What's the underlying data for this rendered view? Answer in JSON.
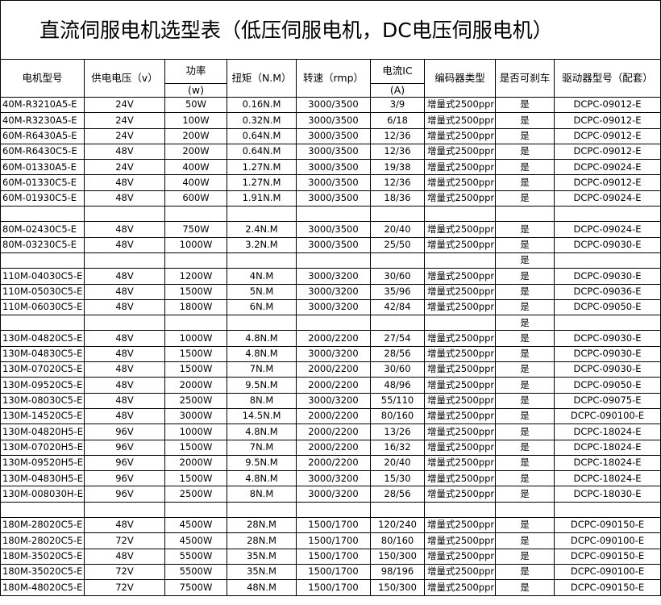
{
  "title": "直流伺服电机选型表（低压伺服电机，DC电压伺服电机）",
  "table": {
    "header": [
      "电机型号",
      "供电电压（v）",
      [
        "功率",
        "(w)"
      ],
      "扭矩（N.M）",
      "转速（rmp）",
      [
        "电流IC",
        "(A)"
      ],
      "编码器类型",
      "是否可刹车",
      "驱动器型号（配套）"
    ],
    "rows": [
      [
        "40M-R3210A5-E",
        "24V",
        "50W",
        "0.16N.M",
        "3000/3500",
        "3/9",
        "增量式2500ppr",
        "是",
        "DCPC-09012-E"
      ],
      [
        "40M-R3230A5-E",
        "24V",
        "100W",
        "0.32N.M",
        "3000/3500",
        "6/18",
        "增量式2500ppr",
        "是",
        "DCPC-09012-E"
      ],
      [
        "60M-R6430A5-E",
        "24V",
        "200W",
        "0.64N.M",
        "3000/3500",
        "12/36",
        "增量式2500ppr",
        "是",
        "DCPC-09012-E"
      ],
      [
        "60M-R6430C5-E",
        "48V",
        "200W",
        "0.64N.M",
        "3000/3500",
        "12/36",
        "增量式2500ppr",
        "是",
        "DCPC-09012-E"
      ],
      [
        "60M-01330A5-E",
        "24V",
        "400W",
        "1.27N.M",
        "3000/3500",
        "19/38",
        "增量式2500ppr",
        "是",
        "DCPC-09024-E"
      ],
      [
        "60M-01330C5-E",
        "48V",
        "400W",
        "1.27N.M",
        "3000/3500",
        "12/36",
        "增量式2500ppr",
        "是",
        "DCPC-09012-E"
      ],
      [
        "60M-01930C5-E",
        "48V",
        "600W",
        "1.91N.M",
        "3000/3500",
        "18/36",
        "增量式2500ppr",
        "是",
        "DCPC-09024-E"
      ],
      [
        null,
        null,
        null,
        null,
        null,
        null,
        null,
        null,
        null
      ],
      [
        "80M-02430C5-E",
        "48V",
        "750W",
        "2.4N.M",
        "3000/3500",
        "20/40",
        "增量式2500ppr",
        "是",
        "DCPC-09024-E"
      ],
      [
        "80M-03230C5-E",
        "48V",
        "1000W",
        "3.2N.M",
        "3000/3500",
        "25/50",
        "增量式2500ppr",
        "是",
        "DCPC-09030-E"
      ],
      [
        null,
        null,
        null,
        null,
        null,
        null,
        null,
        "是",
        null
      ],
      [
        "110M-04030C5-E",
        "48V",
        "1200W",
        "4N.M",
        "3000/3200",
        "30/60",
        "增量式2500ppr",
        "是",
        "DCPC-09030-E"
      ],
      [
        "110M-05030C5-E",
        "48V",
        "1500W",
        "5N.M",
        "3000/3200",
        "35/96",
        "增量式2500ppr",
        "是",
        "DCPC-09036-E"
      ],
      [
        "110M-06030C5-E",
        "48V",
        "1800W",
        "6N.M",
        "3000/3200",
        "42/84",
        "增量式2500ppr",
        "是",
        "DCPC-09050-E"
      ],
      [
        null,
        null,
        null,
        null,
        null,
        null,
        null,
        "是",
        null
      ],
      [
        "130M-04820C5-E",
        "48V",
        "1000W",
        "4.8N.M",
        "2000/2200",
        "27/54",
        "增量式2500ppr",
        "是",
        "DCPC-09030-E"
      ],
      [
        "130M-04830C5-E",
        "48V",
        "1500W",
        "4.8N.M",
        "3000/3200",
        "28/56",
        "增量式2500ppr",
        "是",
        "DCPC-09030-E"
      ],
      [
        "130M-07020C5-E",
        "48V",
        "1500W",
        "7N.M",
        "2000/2200",
        "30/60",
        "增量式2500ppr",
        "是",
        "DCPC-09030-E"
      ],
      [
        "130M-09520C5-E",
        "48V",
        "2000W",
        "9.5N.M",
        "2000/2200",
        "48/96",
        "增量式2500ppr",
        "是",
        "DCPC-09050-E"
      ],
      [
        "130M-08030C5-E",
        "48V",
        "2500W",
        "8N.M",
        "3000/3200",
        "55/110",
        "增量式2500ppr",
        "是",
        "DCPC-09075-E"
      ],
      [
        "130M-14520C5-E",
        "48V",
        "3000W",
        "14.5N.M",
        "2000/2200",
        "80/160",
        "增量式2500ppr",
        "是",
        "DCPC-090100-E"
      ],
      [
        "130M-04820H5-E",
        "96V",
        "1000W",
        "4.8N.M",
        "2000/2200",
        "13/26",
        "增量式2500ppr",
        "是",
        "DCPC-18024-E"
      ],
      [
        "130M-07020H5-E",
        "96V",
        "1500W",
        "7N.M",
        "2000/2200",
        "16/32",
        "增量式2500ppr",
        "是",
        "DCPC-18024-E"
      ],
      [
        "130M-09520H5-E",
        "96V",
        "2000W",
        "9.5N.M",
        "2000/2200",
        "20/40",
        "增量式2500ppr",
        "是",
        "DCPC-18024-E"
      ],
      [
        "130M-04830H5-E",
        "96V",
        "1500W",
        "4.8N.M",
        "3000/3200",
        "15/30",
        "增量式2500ppr",
        "是",
        "DCPC-18024-E"
      ],
      [
        "130M-008030H-E",
        "96V",
        "2500W",
        "8N.M",
        "3000/3200",
        "28/56",
        "增量式2500ppr",
        "是",
        "DCPC-18030-E"
      ],
      [
        null,
        null,
        null,
        null,
        null,
        null,
        null,
        null,
        null
      ],
      [
        "180M-28020C5-E",
        "48V",
        "4500W",
        "28N.M",
        "1500/1700",
        "120/240",
        "增量式2500ppr",
        "是",
        "DCPC-090150-E"
      ],
      [
        "180M-28020C5-E",
        "72V",
        "4500W",
        "28N.M",
        "1500/1700",
        "80/160",
        "增量式2500ppr",
        "是",
        "DCPC-090100-E"
      ],
      [
        "180M-35020C5-E",
        "48V",
        "5500W",
        "35N.M",
        "1500/1700",
        "150/300",
        "增量式2500ppr",
        "是",
        "DCPC-090150-E"
      ],
      [
        "180M-35020C5-E",
        "72V",
        "5500W",
        "35N.M",
        "1500/1700",
        "98/196",
        "增量式2500ppr",
        "是",
        "DCPC-090100-E"
      ],
      [
        "180M-48020C5-E",
        "72V",
        "7500W",
        "48N.M",
        "1500/1700",
        "150/300",
        "增量式2500ppr",
        "是",
        "DCPC-090150-E"
      ]
    ]
  }
}
